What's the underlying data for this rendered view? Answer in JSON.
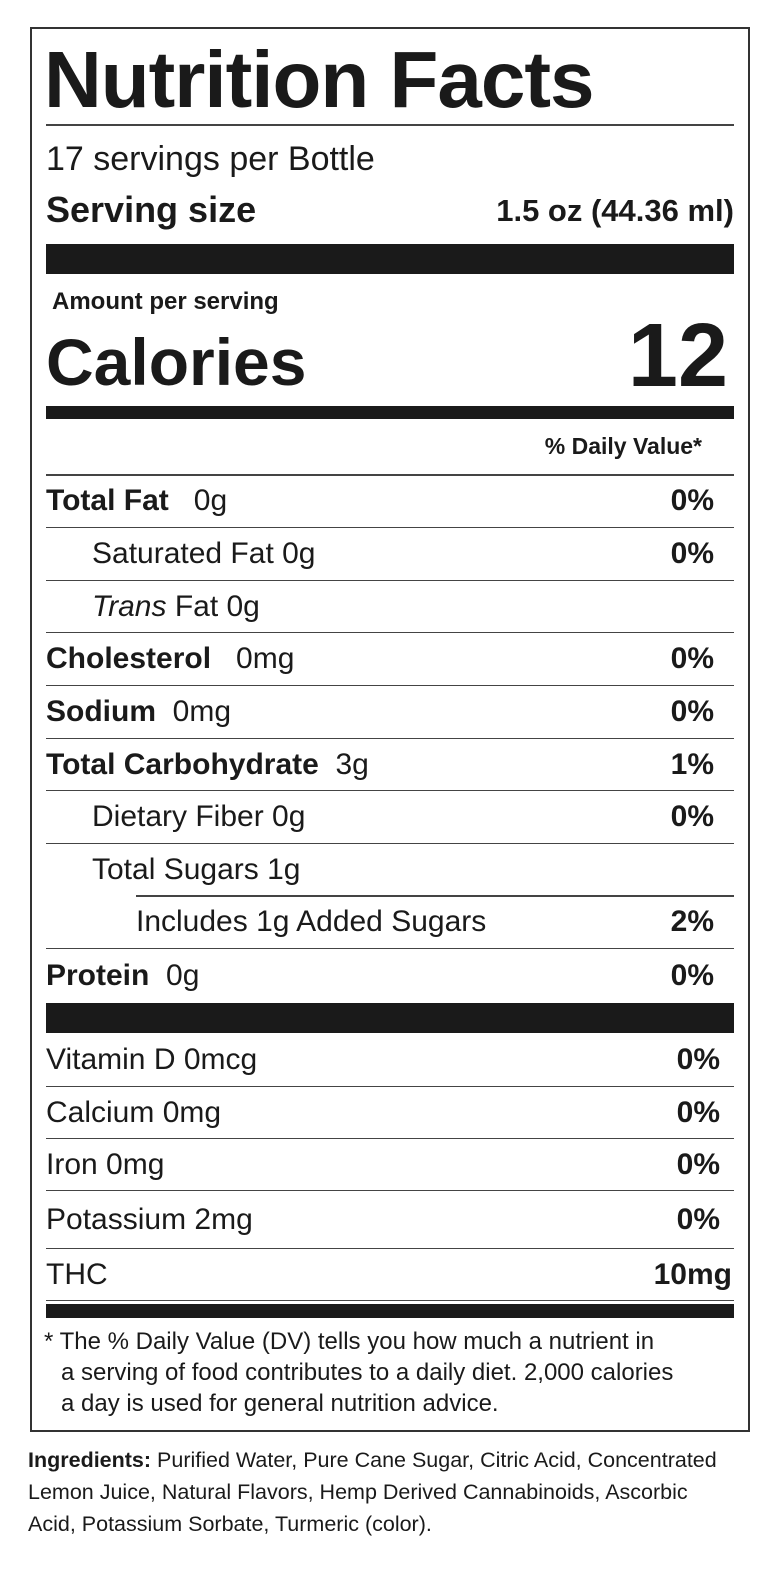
{
  "title": "Nutrition Facts",
  "servings": "17 servings per Bottle",
  "serving_size": {
    "label": "Serving size",
    "value": "1.5 oz (44.36 ml)"
  },
  "amount_per_serving": "Amount per serving",
  "calories": {
    "label": "Calories",
    "value": "12"
  },
  "daily_value_header": "% Daily Value*",
  "nutrients": [
    {
      "name": "Total Fat",
      "amount": "0g",
      "dv": "0%"
    },
    {
      "name": "Saturated Fat 0g",
      "dv": "0%"
    },
    {
      "name_italic": "Trans",
      "name": "Fat 0g"
    },
    {
      "name": "Cholesterol",
      "amount": "0mg",
      "dv": "0%"
    },
    {
      "name": "Sodium",
      "amount": "0mg",
      "dv": "0%"
    },
    {
      "name": "Total Carbohydrate",
      "amount": "3g",
      "dv": "1%"
    },
    {
      "name": "Dietary Fiber 0g",
      "dv": "0%"
    },
    {
      "name": "Total Sugars 1g"
    },
    {
      "name": "Includes 1g Added Sugars",
      "dv": "2%"
    },
    {
      "name": "Protein",
      "amount": "0g",
      "dv": "0%"
    }
  ],
  "vitamins": [
    {
      "name": "Vitamin D 0mcg",
      "dv": "0%"
    },
    {
      "name": "Calcium 0mg",
      "dv": "0%"
    },
    {
      "name": "Iron 0mg",
      "dv": "0%"
    },
    {
      "name": "Potassium 2mg",
      "dv": "0%"
    },
    {
      "name": "THC",
      "dv": "10mg"
    }
  ],
  "footnote": [
    "* The % Daily Value (DV) tells you how much a nutrient in",
    "a serving of food contributes to a daily diet. 2,000 calories",
    "a day is used for general nutrition advice."
  ],
  "ingredients": {
    "label": "Ingredients:",
    "lines": [
      "Purified Water, Pure Cane Sugar, Citric Acid, Concentrated",
      "Lemon Juice, Natural Flavors, Hemp Derived Cannabinoids, Ascorbic",
      "Acid, Potassium Sorbate, Turmeric (color)."
    ]
  }
}
